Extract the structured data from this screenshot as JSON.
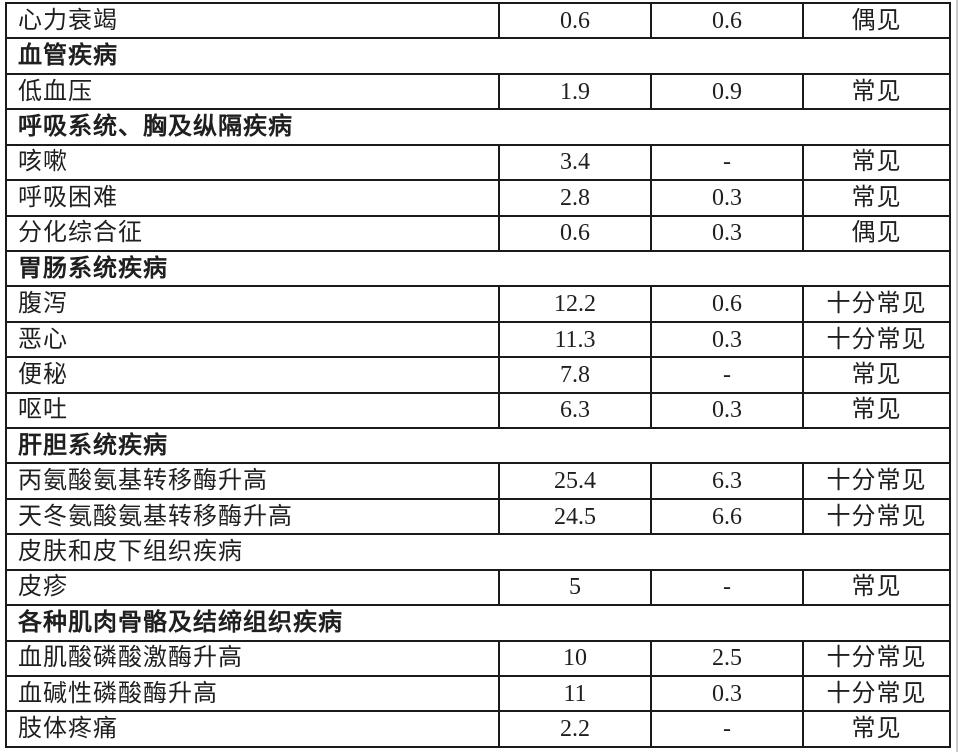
{
  "colors": {
    "border": "#1a1a1a",
    "text": "#1f1f1f",
    "page_edge_line": "#cccccc",
    "page_background": "#ffffff"
  },
  "table": {
    "rows": [
      {
        "type": "item",
        "label": "心力衰竭",
        "incidence_all": "0.6",
        "incidence_grade3": "0.6",
        "frequency": "偶见"
      },
      {
        "type": "section",
        "label": "血管疾病",
        "bold": true
      },
      {
        "type": "item",
        "label": "低血压",
        "incidence_all": "1.9",
        "incidence_grade3": "0.9",
        "frequency": "常见"
      },
      {
        "type": "section",
        "label": "呼吸系统、胸及纵隔疾病",
        "bold": true
      },
      {
        "type": "item",
        "label": "咳嗽",
        "incidence_all": "3.4",
        "incidence_grade3": "-",
        "frequency": "常见"
      },
      {
        "type": "item",
        "label": "呼吸困难",
        "incidence_all": "2.8",
        "incidence_grade3": "0.3",
        "frequency": "常见"
      },
      {
        "type": "item",
        "label": "分化综合征",
        "incidence_all": "0.6",
        "incidence_grade3": "0.3",
        "frequency": "偶见"
      },
      {
        "type": "section",
        "label": "胃肠系统疾病",
        "bold": true
      },
      {
        "type": "item",
        "label": "腹泻",
        "incidence_all": "12.2",
        "incidence_grade3": "0.6",
        "frequency": "十分常见"
      },
      {
        "type": "item",
        "label": "恶心",
        "incidence_all": "11.3",
        "incidence_grade3": "0.3",
        "frequency": "十分常见"
      },
      {
        "type": "item",
        "label": "便秘",
        "incidence_all": "7.8",
        "incidence_grade3": "-",
        "frequency": "常见"
      },
      {
        "type": "item",
        "label": "呕吐",
        "incidence_all": "6.3",
        "incidence_grade3": "0.3",
        "frequency": "常见"
      },
      {
        "type": "section",
        "label": "肝胆系统疾病",
        "bold": true
      },
      {
        "type": "item",
        "label": "丙氨酸氨基转移酶升高",
        "incidence_all": "25.4",
        "incidence_grade3": "6.3",
        "frequency": "十分常见"
      },
      {
        "type": "item",
        "label": "天冬氨酸氨基转移酶升高",
        "incidence_all": "24.5",
        "incidence_grade3": "6.6",
        "frequency": "十分常见"
      },
      {
        "type": "section",
        "label": "皮肤和皮下组织疾病",
        "bold": false
      },
      {
        "type": "item",
        "label": "皮疹",
        "incidence_all": "5",
        "incidence_grade3": "-",
        "frequency": "常见"
      },
      {
        "type": "section",
        "label": "各种肌肉骨骼及结缔组织疾病",
        "bold": true
      },
      {
        "type": "item",
        "label": "血肌酸磷酸激酶升高",
        "incidence_all": "10",
        "incidence_grade3": "2.5",
        "frequency": "十分常见"
      },
      {
        "type": "item",
        "label": "血碱性磷酸酶升高",
        "incidence_all": "11",
        "incidence_grade3": "0.3",
        "frequency": "十分常见"
      },
      {
        "type": "item",
        "label": "肢体疼痛",
        "incidence_all": "2.2",
        "incidence_grade3": "-",
        "frequency": "常见"
      }
    ]
  }
}
